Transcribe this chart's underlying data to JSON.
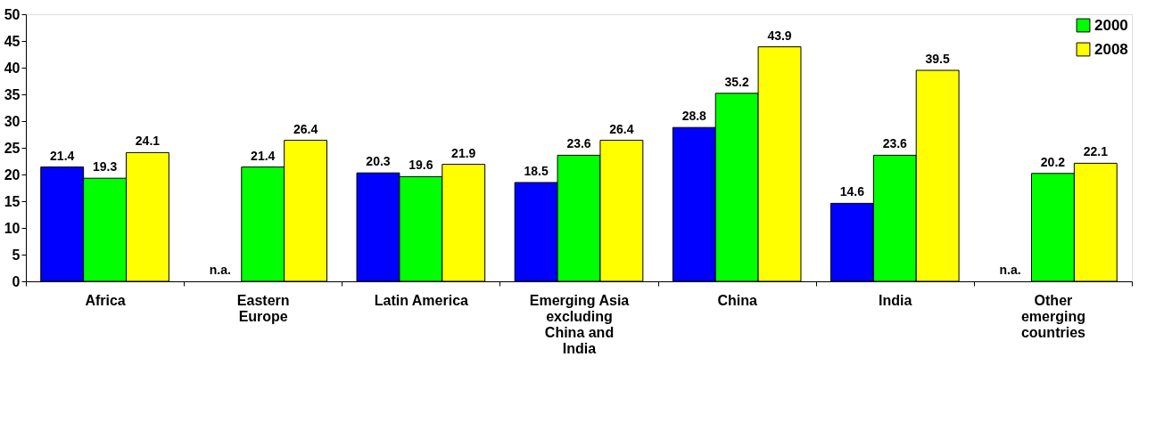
{
  "chart_data": {
    "type": "bar",
    "categories": [
      "Africa",
      "Eastern Europe",
      "Latin America",
      "Emerging Asia excluding China and India",
      "China",
      "India",
      "Other emerging countries"
    ],
    "series": [
      {
        "color": "#0000ff",
        "values": [
          21.4,
          null,
          20.3,
          18.5,
          28.8,
          14.6,
          null
        ],
        "value_labels": [
          "21.4",
          "n.a.",
          "20.3",
          "18.5",
          "28.8",
          "14.6",
          "n.a."
        ]
      },
      {
        "name": "2000",
        "color": "#00ff00",
        "values": [
          19.3,
          21.4,
          19.6,
          23.6,
          35.2,
          23.6,
          20.2
        ],
        "value_labels": [
          "19.3",
          "21.4",
          "19.6",
          "23.6",
          "35.2",
          "23.6",
          "20.2"
        ]
      },
      {
        "name": "2008",
        "color": "#ffff00",
        "values": [
          24.1,
          26.4,
          21.9,
          26.4,
          43.9,
          39.5,
          22.1
        ],
        "value_labels": [
          "24.1",
          "26.4",
          "21.9",
          "26.4",
          "43.9",
          "39.5",
          "22.1"
        ]
      }
    ],
    "ylim": [
      0,
      50
    ],
    "yticks": [
      0,
      5,
      10,
      15,
      20,
      25,
      30,
      35,
      40,
      45,
      50
    ],
    "grid": false,
    "legend": "top right"
  }
}
